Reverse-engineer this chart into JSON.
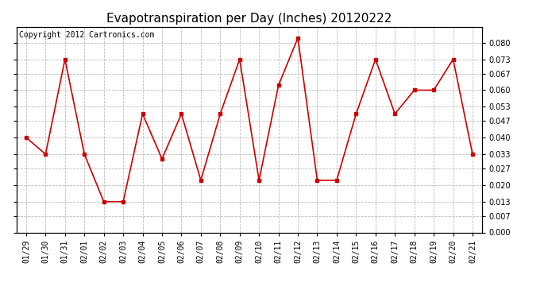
{
  "title": "Evapotranspiration per Day (Inches) 20120222",
  "copyright_text": "Copyright 2012 Cartronics.com",
  "labels": [
    "01/29",
    "01/30",
    "01/31",
    "02/01",
    "02/02",
    "02/03",
    "02/04",
    "02/05",
    "02/06",
    "02/07",
    "02/08",
    "02/09",
    "02/10",
    "02/11",
    "02/12",
    "02/13",
    "02/14",
    "02/15",
    "02/16",
    "02/17",
    "02/18",
    "02/19",
    "02/20",
    "02/21"
  ],
  "values": [
    0.04,
    0.033,
    0.073,
    0.033,
    0.013,
    0.013,
    0.05,
    0.031,
    0.05,
    0.022,
    0.05,
    0.073,
    0.022,
    0.062,
    0.082,
    0.022,
    0.022,
    0.05,
    0.073,
    0.05,
    0.06,
    0.06,
    0.073,
    0.033
  ],
  "line_color": "#cc0000",
  "marker": "s",
  "marker_size": 3,
  "ylim": [
    0.0,
    0.0867
  ],
  "yticks": [
    0.0,
    0.007,
    0.013,
    0.02,
    0.027,
    0.033,
    0.04,
    0.047,
    0.053,
    0.06,
    0.067,
    0.073,
    0.08
  ],
  "background_color": "#ffffff",
  "plot_bg_color": "#ffffff",
  "grid_color": "#bbbbbb",
  "title_fontsize": 11,
  "copyright_fontsize": 7,
  "tick_fontsize": 7,
  "figsize": [
    6.9,
    3.75
  ],
  "dpi": 100
}
